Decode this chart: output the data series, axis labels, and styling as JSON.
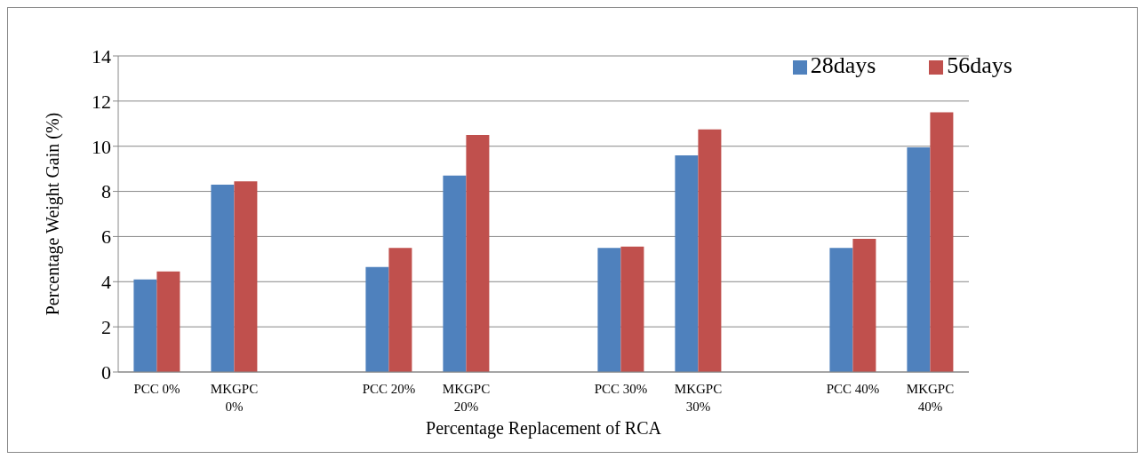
{
  "chart_data": {
    "type": "bar",
    "xlabel": "Percentage Replacement of  RCA",
    "ylabel": "Percentage Weight Gain (%)",
    "categories": [
      "PCC 0%",
      "MKGPC 0%",
      null,
      "PCC 20%",
      "MKGPC 20%",
      null,
      "PCC 30%",
      "MKGPC 30%",
      null,
      "PCC 40%",
      "MKGPC 40%"
    ],
    "series": [
      {
        "name": "28days",
        "color": "#4f81bd",
        "values": [
          4.1,
          8.3,
          null,
          4.65,
          8.7,
          null,
          5.5,
          9.6,
          null,
          5.5,
          9.95
        ]
      },
      {
        "name": "56days",
        "color": "#c0504d",
        "values": [
          4.45,
          8.45,
          null,
          5.5,
          10.5,
          null,
          5.55,
          10.75,
          null,
          5.9,
          11.5
        ]
      }
    ],
    "ylim": [
      0,
      14
    ],
    "yticks": [
      0,
      2,
      4,
      6,
      8,
      10,
      12,
      14
    ],
    "grid": "y",
    "legend": "top right"
  }
}
